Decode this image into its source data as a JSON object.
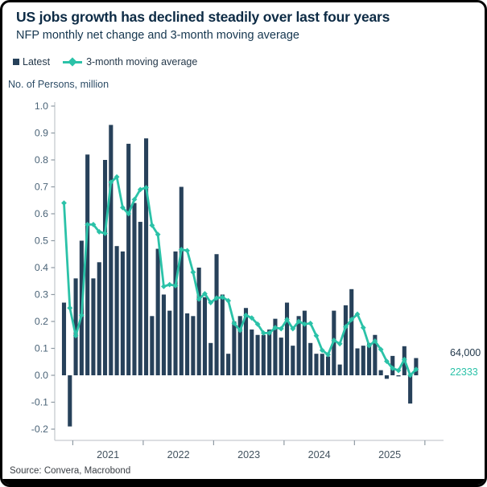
{
  "header": {
    "title": "US jobs growth has declined steadily over last four years",
    "subtitle": "NFP monthly net change and 3-month moving average"
  },
  "legend": {
    "latest_label": "Latest",
    "ma_label": "3-month moving average"
  },
  "y_axis": {
    "title": "No. of Persons, million",
    "tick_labels": [
      "1.0",
      "0.9",
      "0.8",
      "0.7",
      "0.6",
      "0.5",
      "0.4",
      "0.3",
      "0.2",
      "0.1",
      "0.0",
      "-0.1",
      "-0.2"
    ]
  },
  "x_axis": {
    "year_labels": [
      "2021",
      "2022",
      "2023",
      "2024",
      "2025"
    ]
  },
  "end_labels": {
    "latest": "64,000",
    "moving_average": "22333"
  },
  "source": "Source: Convera, Macrobond",
  "colors": {
    "bar": "#27415a",
    "ma_line": "#2bc2a8",
    "title_text": "#0d2b45",
    "axis_line": "#c6cbd0",
    "tick_mark": "#8f9aa3",
    "y_tick_text": "#4a6377",
    "x_tick_text": "#42525f",
    "end_label_latest": "#22384b",
    "end_label_ma": "#2bc2a8"
  },
  "chart_data": {
    "type": "bar+line",
    "title": "US jobs growth has declined steadily over last four years",
    "subtitle": "NFP monthly net change and 3-month moving average",
    "ylabel": "No. of Persons, million",
    "ylim": [
      -0.2,
      1.0
    ],
    "grid": false,
    "legend_position": "top-left",
    "unit": "million persons",
    "x": [
      "2020-11",
      "2020-12",
      "2021-01",
      "2021-02",
      "2021-03",
      "2021-04",
      "2021-05",
      "2021-06",
      "2021-07",
      "2021-08",
      "2021-09",
      "2021-10",
      "2021-11",
      "2021-12",
      "2022-01",
      "2022-02",
      "2022-03",
      "2022-04",
      "2022-05",
      "2022-06",
      "2022-07",
      "2022-08",
      "2022-09",
      "2022-10",
      "2022-11",
      "2022-12",
      "2023-01",
      "2023-02",
      "2023-03",
      "2023-04",
      "2023-05",
      "2023-06",
      "2023-07",
      "2023-08",
      "2023-09",
      "2023-10",
      "2023-11",
      "2023-12",
      "2024-01",
      "2024-02",
      "2024-03",
      "2024-04",
      "2024-05",
      "2024-06",
      "2024-07",
      "2024-08",
      "2024-09",
      "2024-10",
      "2024-11",
      "2024-12",
      "2025-01",
      "2025-02",
      "2025-03",
      "2025-04",
      "2025-05",
      "2025-06",
      "2025-07",
      "2025-08",
      "2025-09",
      "2025-10",
      "2025-11"
    ],
    "series": [
      {
        "name": "Latest",
        "type": "bar",
        "values": [
          0.27,
          -0.19,
          0.36,
          0.5,
          0.82,
          0.36,
          0.42,
          0.8,
          0.93,
          0.48,
          0.46,
          0.86,
          0.64,
          0.57,
          0.88,
          0.22,
          0.47,
          0.3,
          0.24,
          0.46,
          0.7,
          0.23,
          0.22,
          0.4,
          0.29,
          0.12,
          0.45,
          0.3,
          0.08,
          0.2,
          0.22,
          0.25,
          0.17,
          0.15,
          0.15,
          0.17,
          0.21,
          0.14,
          0.27,
          0.11,
          0.22,
          0.24,
          0.12,
          0.08,
          0.08,
          0.07,
          0.24,
          0.04,
          0.26,
          0.32,
          0.1,
          0.11,
          0.12,
          0.15,
          0.019,
          -0.013,
          0.072,
          -0.004,
          0.108,
          -0.105,
          0.064
        ]
      },
      {
        "name": "3-month moving average",
        "type": "line",
        "values": [
          0.64,
          0.25,
          0.147,
          0.223,
          0.56,
          0.56,
          0.533,
          0.527,
          0.717,
          0.737,
          0.623,
          0.6,
          0.653,
          0.69,
          0.697,
          0.557,
          0.523,
          0.33,
          0.337,
          0.333,
          0.467,
          0.463,
          0.383,
          0.283,
          0.303,
          0.27,
          0.287,
          0.29,
          0.277,
          0.193,
          0.167,
          0.223,
          0.213,
          0.19,
          0.157,
          0.157,
          0.177,
          0.173,
          0.207,
          0.173,
          0.2,
          0.19,
          0.193,
          0.147,
          0.093,
          0.077,
          0.13,
          0.117,
          0.18,
          0.207,
          0.227,
          0.177,
          0.11,
          0.127,
          0.096,
          0.052,
          0.026,
          0.018,
          0.059,
          0.0,
          0.022
        ]
      }
    ],
    "last_bar_label": "64,000",
    "last_ma_label": "22333"
  }
}
